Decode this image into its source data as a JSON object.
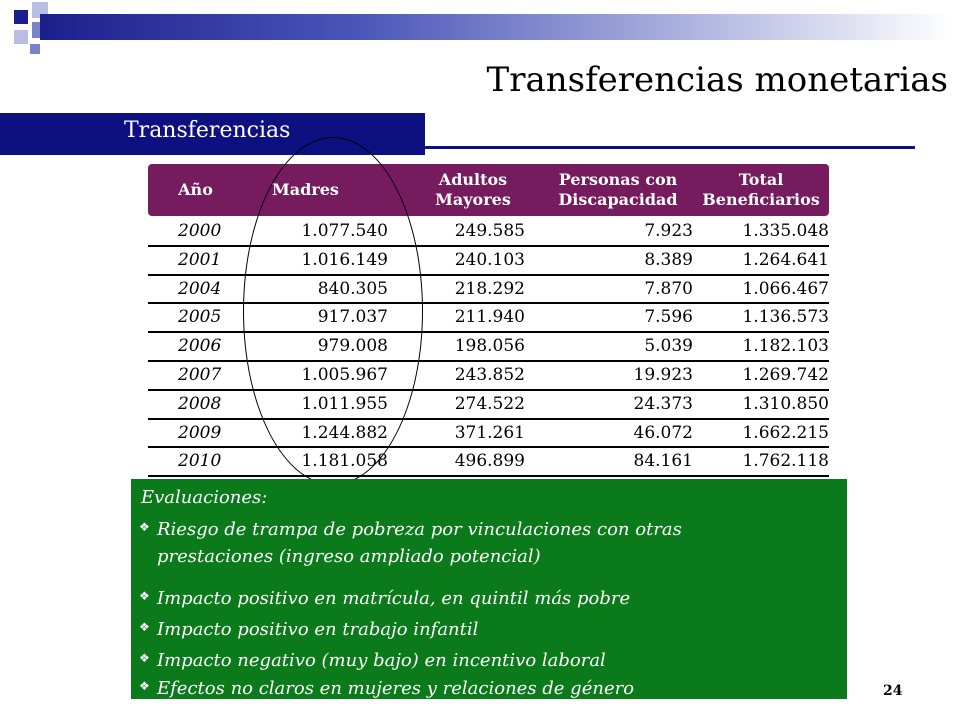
{
  "title": "Transferencias monetarias",
  "section": "Transferencias",
  "table": {
    "headers": [
      "Año",
      "Madres",
      "Adultos Mayores",
      "Personas con Discapacidad",
      "Total Beneficiarios"
    ],
    "header_lines": [
      [
        "Año"
      ],
      [
        "Madres"
      ],
      [
        "Adultos",
        "Mayores"
      ],
      [
        "Personas con",
        "Discapacidad"
      ],
      [
        "Total",
        "Beneficiarios"
      ]
    ],
    "rows": [
      [
        "2000",
        "1.077.540",
        "249.585",
        "7.923",
        "1.335.048"
      ],
      [
        "2001",
        "1.016.149",
        "240.103",
        "8.389",
        "1.264.641"
      ],
      [
        "2004",
        "840.305",
        "218.292",
        "7.870",
        "1.066.467"
      ],
      [
        "2005",
        "917.037",
        "211.940",
        "7.596",
        "1.136.573"
      ],
      [
        "2006",
        "979.008",
        "198.056",
        "5.039",
        "1.182.103"
      ],
      [
        "2007",
        "1.005.967",
        "243.852",
        "19.923",
        "1.269.742"
      ],
      [
        "2008",
        "1.011.955",
        "274.522",
        "24.373",
        "1.310.850"
      ],
      [
        "2009",
        "1.244.882",
        "371.261",
        "46.072",
        "1.662.215"
      ],
      [
        "2010",
        "1.181.058",
        "496.899",
        "84.161",
        "1.762.118"
      ]
    ]
  },
  "evaluaciones": {
    "title": "Evaluaciones:",
    "items": [
      [
        "Riesgo de trampa de pobreza por vinculaciones con otras",
        "prestaciones (ingreso ampliado potencial)"
      ],
      [
        "Impacto positivo en matrícula, en quintil más pobre"
      ],
      [
        "Impacto positivo en trabajo infantil"
      ],
      [
        "Impacto negativo (muy bajo) en incentivo laboral"
      ],
      [
        "Efectos no claros en mujeres y relaciones de género"
      ]
    ]
  },
  "page_number": "24",
  "colors": {
    "header_bg": "#761b5e",
    "section_band": "#0d1080",
    "eval_bg": "#0a7a1a"
  },
  "icons": {
    "bullet": "diamond-bullet-icon"
  }
}
